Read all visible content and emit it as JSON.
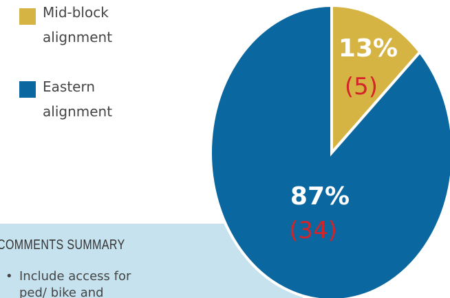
{
  "chart_data": {
    "type": "pie",
    "categories": [
      "Mid-block alignment",
      "Eastern alignment"
    ],
    "values": [
      13,
      87
    ],
    "value_labels": [
      "13%",
      "87%"
    ],
    "counts": [
      5,
      34
    ],
    "count_labels": [
      "(5)",
      "(34)"
    ],
    "colors": [
      "#d6b443",
      "#0a679f"
    ]
  },
  "comments": {
    "title": "COMMENTS SUMMARY",
    "items": [
      "Include access for ped/ bike and"
    ]
  }
}
